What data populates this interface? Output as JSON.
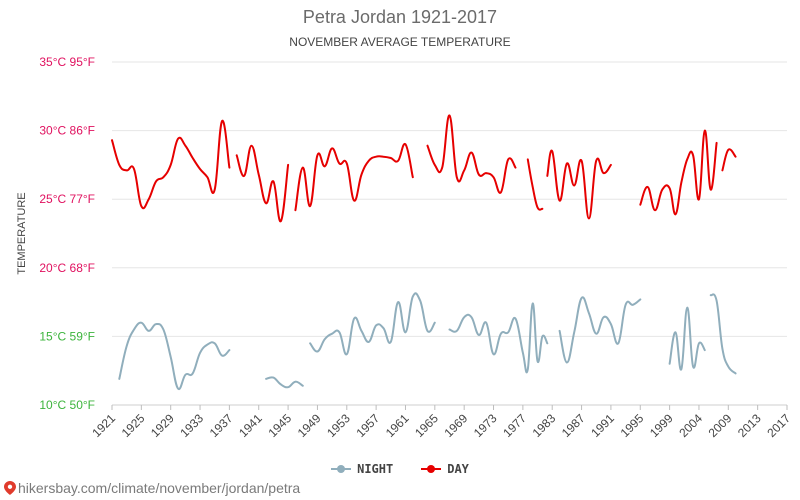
{
  "chart_data": {
    "type": "line",
    "title": "Petra Jordan 1921-2017",
    "subtitle": "NOVEMBER AVERAGE TEMPERATURE",
    "ylabel": "TEMPERATURE",
    "ylim": [
      10,
      35
    ],
    "xlim": [
      1921,
      2017
    ],
    "yticks": [
      {
        "value": 35,
        "label": "35°C 95°F",
        "color": "#e0115f"
      },
      {
        "value": 30,
        "label": "30°C 86°F",
        "color": "#e0115f"
      },
      {
        "value": 25,
        "label": "25°C 77°F",
        "color": "#e0115f"
      },
      {
        "value": 20,
        "label": "20°C 68°F",
        "color": "#e0115f"
      },
      {
        "value": 15,
        "label": "15°C 59°F",
        "color": "#3cb43c"
      },
      {
        "value": 10,
        "label": "10°C 50°F",
        "color": "#3cb43c"
      }
    ],
    "xticks": [
      "1921",
      "1925",
      "1929",
      "1933",
      "1937",
      "1941",
      "1945",
      "1949",
      "1953",
      "1957",
      "1961",
      "1965",
      "1969",
      "1973",
      "1977",
      "1983",
      "1987",
      "1991",
      "1995",
      "1999",
      "2004",
      "2009",
      "2013",
      "2017"
    ],
    "grid": true,
    "legend_position": "bottom",
    "series": [
      {
        "name": "DAY",
        "color": "#e60000",
        "segments": [
          [
            [
              1921,
              29.3
            ],
            [
              1922,
              27.5
            ],
            [
              1923,
              27.1
            ],
            [
              1924,
              27.2
            ],
            [
              1925,
              24.5
            ],
            [
              1926,
              25.0
            ],
            [
              1927,
              26.3
            ],
            [
              1928,
              26.6
            ],
            [
              1929,
              27.5
            ],
            [
              1930,
              29.4
            ],
            [
              1931,
              28.9
            ],
            [
              1932,
              28.0
            ],
            [
              1933,
              27.2
            ],
            [
              1934,
              26.6
            ],
            [
              1935,
              25.7
            ],
            [
              1936,
              30.7
            ],
            [
              1937,
              27.3
            ]
          ],
          [
            [
              1938,
              28.2
            ],
            [
              1939,
              26.7
            ],
            [
              1940,
              28.9
            ],
            [
              1941,
              26.8
            ],
            [
              1942,
              24.7
            ],
            [
              1943,
              26.3
            ],
            [
              1944,
              23.4
            ],
            [
              1945,
              27.5
            ]
          ],
          [
            [
              1946,
              24.2
            ],
            [
              1947,
              27.3
            ],
            [
              1948,
              24.5
            ],
            [
              1949,
              28.2
            ],
            [
              1950,
              27.4
            ],
            [
              1951,
              28.7
            ],
            [
              1952,
              27.6
            ],
            [
              1953,
              27.6
            ],
            [
              1954,
              24.9
            ],
            [
              1955,
              26.8
            ],
            [
              1956,
              27.8
            ],
            [
              1957,
              28.1
            ],
            [
              1958,
              28.1
            ],
            [
              1959,
              28.0
            ],
            [
              1960,
              27.8
            ],
            [
              1961,
              29.0
            ],
            [
              1962,
              26.6
            ]
          ],
          [
            [
              1964,
              28.9
            ],
            [
              1965,
              27.5
            ],
            [
              1966,
              27.3
            ],
            [
              1967,
              31.1
            ],
            [
              1968,
              26.6
            ],
            [
              1969,
              27.1
            ],
            [
              1970,
              28.4
            ],
            [
              1971,
              26.8
            ],
            [
              1972,
              26.9
            ],
            [
              1973,
              26.6
            ],
            [
              1974,
              25.5
            ],
            [
              1975,
              27.9
            ],
            [
              1976,
              27.3
            ]
          ],
          [
            [
              1978,
              27.9
            ],
            [
              1979,
              25.9
            ],
            [
              1980,
              24.4
            ],
            [
              1981,
              24.3
            ]
          ],
          [
            [
              1982,
              26.7
            ],
            [
              1983,
              28.5
            ],
            [
              1984,
              24.9
            ],
            [
              1985,
              27.6
            ],
            [
              1986,
              26.0
            ],
            [
              1987,
              27.8
            ],
            [
              1988,
              23.6
            ],
            [
              1989,
              27.8
            ],
            [
              1990,
              26.9
            ],
            [
              1991,
              27.5
            ]
          ],
          [
            [
              1995,
              24.6
            ],
            [
              1996,
              25.9
            ],
            [
              1997,
              24.2
            ],
            [
              1998,
              25.7
            ],
            [
              1999,
              25.8
            ],
            [
              2000,
              23.9
            ],
            [
              2001,
              26.2
            ],
            [
              2002,
              27.9
            ],
            [
              2003,
              28.2
            ],
            [
              2004,
              25.0
            ],
            [
              2005,
              30.0
            ],
            [
              2006,
              25.7
            ],
            [
              2007,
              29.1
            ]
          ],
          [
            [
              2008,
              27.1
            ],
            [
              2009,
              28.6
            ],
            [
              2010,
              28.1
            ]
          ]
        ]
      },
      {
        "name": "NIGHT",
        "color": "#90aebc",
        "segments": [
          [
            [
              1922,
              11.9
            ],
            [
              1923,
              14.3
            ],
            [
              1924,
              15.5
            ],
            [
              1925,
              16.0
            ],
            [
              1926,
              15.4
            ],
            [
              1927,
              15.9
            ],
            [
              1928,
              15.5
            ],
            [
              1929,
              13.5
            ],
            [
              1930,
              11.2
            ],
            [
              1931,
              12.2
            ],
            [
              1932,
              12.3
            ],
            [
              1933,
              13.8
            ],
            [
              1934,
              14.4
            ],
            [
              1935,
              14.5
            ],
            [
              1936,
              13.6
            ],
            [
              1937,
              14.0
            ]
          ],
          [
            [
              1942,
              11.9
            ],
            [
              1943,
              12.0
            ],
            [
              1944,
              11.5
            ],
            [
              1945,
              11.3
            ],
            [
              1946,
              11.7
            ],
            [
              1947,
              11.4
            ]
          ],
          [
            [
              1948,
              14.5
            ],
            [
              1949,
              13.9
            ],
            [
              1950,
              14.8
            ],
            [
              1951,
              15.2
            ],
            [
              1952,
              15.3
            ],
            [
              1953,
              13.7
            ],
            [
              1954,
              16.3
            ],
            [
              1955,
              15.4
            ],
            [
              1956,
              14.6
            ],
            [
              1957,
              15.8
            ],
            [
              1958,
              15.6
            ],
            [
              1959,
              14.6
            ],
            [
              1960,
              17.5
            ],
            [
              1961,
              15.3
            ],
            [
              1962,
              17.9
            ],
            [
              1963,
              17.6
            ],
            [
              1964,
              15.4
            ],
            [
              1965,
              16.0
            ]
          ],
          [
            [
              1967,
              15.5
            ],
            [
              1968,
              15.4
            ],
            [
              1969,
              16.4
            ],
            [
              1970,
              16.4
            ],
            [
              1971,
              15.1
            ],
            [
              1972,
              16.0
            ],
            [
              1973,
              13.7
            ],
            [
              1974,
              15.2
            ],
            [
              1975,
              15.3
            ],
            [
              1976,
              16.3
            ],
            [
              1977,
              13.8
            ],
            [
              1978,
              12.6
            ],
            [
              1979,
              17.4
            ],
            [
              1980,
              13.2
            ],
            [
              1981,
              15.0
            ],
            [
              1982,
              14.5
            ]
          ],
          [
            [
              1984,
              15.4
            ],
            [
              1985,
              13.1
            ],
            [
              1986,
              15.3
            ],
            [
              1987,
              17.8
            ],
            [
              1988,
              16.7
            ],
            [
              1989,
              15.2
            ],
            [
              1990,
              16.4
            ],
            [
              1991,
              15.9
            ],
            [
              1992,
              14.5
            ],
            [
              1993,
              17.3
            ],
            [
              1994,
              17.3
            ],
            [
              1995,
              17.7
            ]
          ],
          [
            [
              1999,
              13.0
            ],
            [
              2000,
              15.3
            ],
            [
              2001,
              12.6
            ],
            [
              2002,
              17.1
            ],
            [
              2003,
              12.8
            ],
            [
              2004,
              14.5
            ],
            [
              2005,
              14.0
            ]
          ],
          [
            [
              2006,
              18.0
            ],
            [
              2007,
              17.6
            ],
            [
              2008,
              14.1
            ],
            [
              2009,
              12.8
            ],
            [
              2010,
              12.3
            ]
          ]
        ]
      }
    ]
  },
  "legend": {
    "night_label": "NIGHT",
    "day_label": "DAY",
    "night_color": "#90aebc",
    "day_color": "#e60000"
  },
  "source": {
    "text": "hikersbay.com/climate/november/jordan/petra",
    "icon": "map-pin-icon",
    "icon_color": "#e03b2c"
  }
}
